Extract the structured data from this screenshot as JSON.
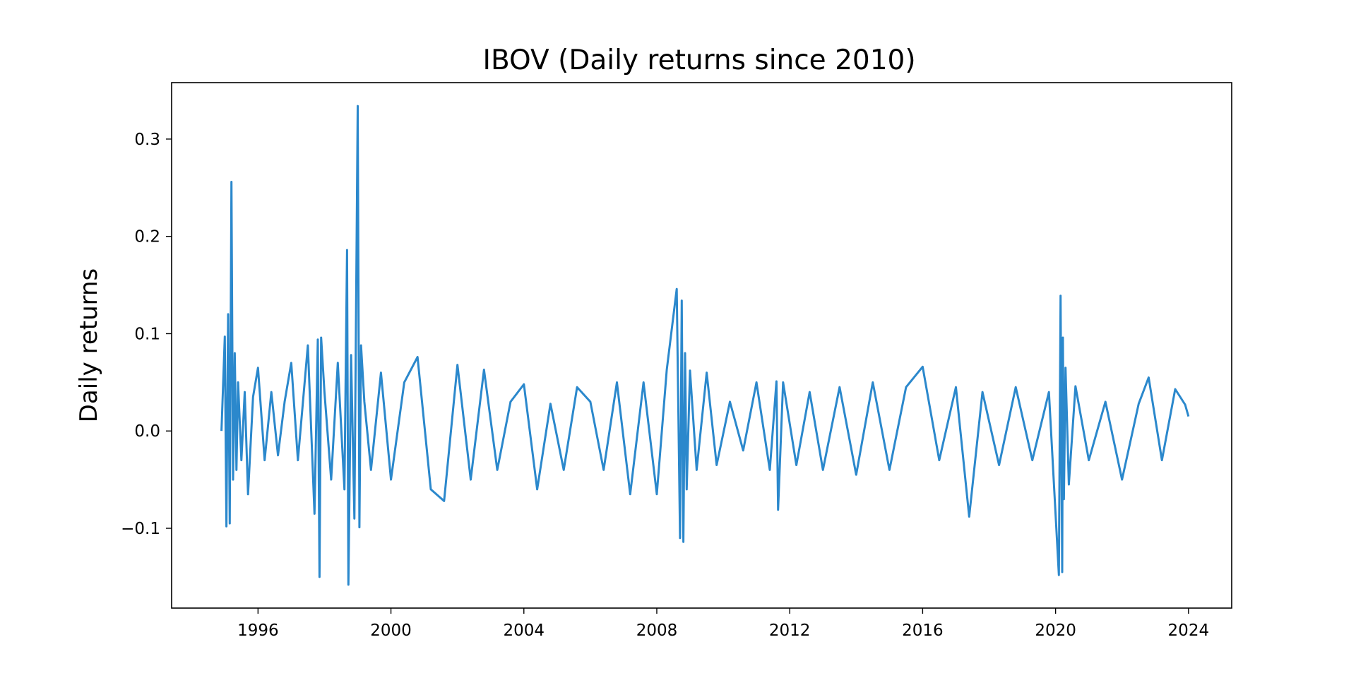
{
  "chart_data": {
    "type": "line",
    "title": "IBOV (Daily returns since 2010)",
    "xlabel": "",
    "ylabel": "Daily returns",
    "xlim": [
      1993.4,
      2025.3
    ],
    "ylim": [
      -0.182,
      0.358
    ],
    "x_ticks": [
      1996,
      2000,
      2004,
      2008,
      2012,
      2016,
      2020,
      2024
    ],
    "x_tick_labels": [
      "1996",
      "2000",
      "2004",
      "2008",
      "2012",
      "2016",
      "2020",
      "2024"
    ],
    "y_ticks": [
      -0.1,
      0.0,
      0.1,
      0.2,
      0.3
    ],
    "y_tick_labels": [
      "−0.1",
      "0.0",
      "0.1",
      "0.2",
      "0.3"
    ],
    "grid": false,
    "series": [
      {
        "color": "#2b88cc",
        "x": [
          1994.9,
          1995.0,
          1995.05,
          1995.1,
          1995.15,
          1995.2,
          1995.25,
          1995.3,
          1995.35,
          1995.4,
          1995.5,
          1995.6,
          1995.7,
          1995.85,
          1996.0,
          1996.2,
          1996.4,
          1996.6,
          1996.8,
          1997.0,
          1997.2,
          1997.5,
          1997.7,
          1997.8,
          1997.85,
          1997.9,
          1998.0,
          1998.2,
          1998.4,
          1998.6,
          1998.68,
          1998.72,
          1998.8,
          1998.9,
          1999.0,
          1999.05,
          1999.1,
          1999.2,
          1999.4,
          1999.7,
          2000.0,
          2000.4,
          2000.8,
          2001.2,
          2001.6,
          2002.0,
          2002.4,
          2002.8,
          2003.2,
          2003.6,
          2004.0,
          2004.4,
          2004.8,
          2005.2,
          2005.6,
          2006.0,
          2006.4,
          2006.8,
          2007.2,
          2007.6,
          2008.0,
          2008.3,
          2008.6,
          2008.7,
          2008.75,
          2008.8,
          2008.85,
          2008.9,
          2009.0,
          2009.2,
          2009.5,
          2009.8,
          2010.2,
          2010.6,
          2011.0,
          2011.4,
          2011.6,
          2011.65,
          2011.8,
          2012.2,
          2012.6,
          2013.0,
          2013.5,
          2014.0,
          2014.5,
          2015.0,
          2015.5,
          2016.0,
          2016.5,
          2017.0,
          2017.4,
          2017.8,
          2018.3,
          2018.8,
          2019.3,
          2019.8,
          2020.1,
          2020.15,
          2020.2,
          2020.22,
          2020.25,
          2020.3,
          2020.4,
          2020.6,
          2021.0,
          2021.5,
          2022.0,
          2022.5,
          2022.8,
          2023.2,
          2023.6,
          2023.9,
          2024.0
        ],
        "y": [
          0.0,
          0.097,
          -0.098,
          0.12,
          -0.095,
          0.256,
          -0.05,
          0.08,
          -0.04,
          0.05,
          -0.03,
          0.04,
          -0.065,
          0.035,
          0.065,
          -0.03,
          0.04,
          -0.025,
          0.03,
          0.07,
          -0.03,
          0.088,
          -0.085,
          0.094,
          -0.15,
          0.096,
          0.04,
          -0.05,
          0.07,
          -0.06,
          0.186,
          -0.158,
          0.078,
          -0.09,
          0.334,
          -0.099,
          0.088,
          0.03,
          -0.04,
          0.06,
          -0.05,
          0.05,
          0.076,
          -0.06,
          -0.072,
          0.068,
          -0.05,
          0.063,
          -0.04,
          0.03,
          0.048,
          -0.06,
          0.028,
          -0.04,
          0.045,
          0.03,
          -0.04,
          0.05,
          -0.065,
          0.05,
          -0.065,
          0.063,
          0.146,
          -0.11,
          0.134,
          -0.114,
          0.08,
          -0.06,
          0.062,
          -0.04,
          0.06,
          -0.035,
          0.03,
          -0.02,
          0.05,
          -0.04,
          0.051,
          -0.081,
          0.05,
          -0.035,
          0.04,
          -0.04,
          0.045,
          -0.045,
          0.05,
          -0.04,
          0.045,
          0.066,
          -0.03,
          0.045,
          -0.088,
          0.04,
          -0.035,
          0.045,
          -0.03,
          0.04,
          -0.148,
          0.139,
          -0.145,
          0.096,
          -0.07,
          0.065,
          -0.055,
          0.046,
          -0.03,
          0.03,
          -0.05,
          0.028,
          0.055,
          -0.03,
          0.043,
          0.027,
          0.015
        ]
      }
    ]
  }
}
